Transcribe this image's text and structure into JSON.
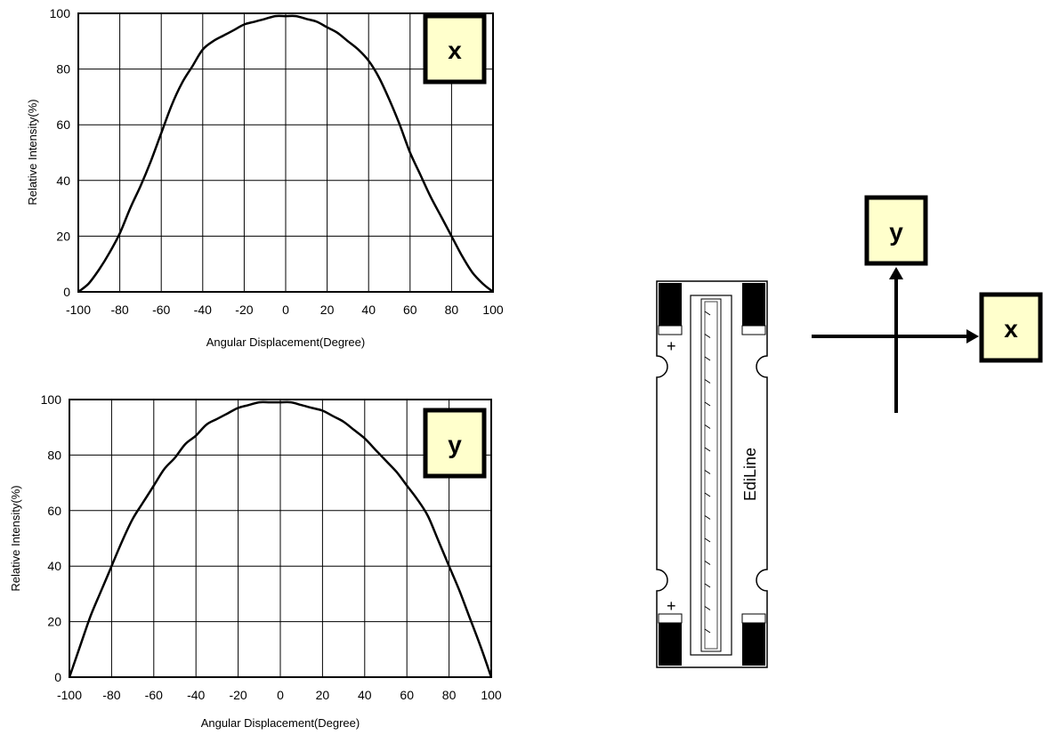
{
  "chart_data": [
    {
      "type": "line",
      "badge": "x",
      "xlabel": "Angular Displacement(Degree)",
      "ylabel": "Relative Intensity(%)",
      "xlim": [
        -100,
        100
      ],
      "ylim": [
        0,
        100
      ],
      "xticks": [
        -100,
        -80,
        -60,
        -40,
        -20,
        0,
        20,
        40,
        60,
        80,
        100
      ],
      "yticks": [
        0,
        20,
        40,
        60,
        80,
        100
      ],
      "grid": true,
      "series": [
        {
          "x": [
            -100,
            -95,
            -90,
            -85,
            -80,
            -75,
            -70,
            -65,
            -60,
            -55,
            -50,
            -45,
            -40,
            -35,
            -30,
            -25,
            -20,
            -15,
            -10,
            -5,
            0,
            5,
            10,
            15,
            20,
            25,
            30,
            35,
            40,
            45,
            50,
            55,
            60,
            65,
            70,
            75,
            80,
            85,
            90,
            95,
            100
          ],
          "y": [
            0,
            3,
            8,
            14,
            21,
            30,
            38,
            47,
            57,
            67,
            75,
            81,
            87,
            90,
            92,
            94,
            96,
            97,
            98,
            99,
            99,
            99,
            98,
            97,
            95,
            93,
            90,
            87,
            83,
            77,
            69,
            60,
            50,
            42,
            34,
            27,
            20,
            13,
            7,
            3,
            0
          ]
        }
      ]
    },
    {
      "type": "line",
      "badge": "y",
      "xlabel": "Angular Displacement(Degree)",
      "ylabel": "Relative Intensity(%)",
      "xlim": [
        -100,
        100
      ],
      "ylim": [
        0,
        100
      ],
      "xticks": [
        -100,
        -80,
        -60,
        -40,
        -20,
        0,
        20,
        40,
        60,
        80,
        100
      ],
      "yticks": [
        0,
        20,
        40,
        60,
        80,
        100
      ],
      "grid": true,
      "series": [
        {
          "x": [
            -100,
            -95,
            -90,
            -85,
            -80,
            -75,
            -70,
            -65,
            -60,
            -55,
            -50,
            -45,
            -40,
            -35,
            -30,
            -25,
            -20,
            -15,
            -10,
            -5,
            0,
            5,
            10,
            15,
            20,
            25,
            30,
            35,
            40,
            45,
            50,
            55,
            60,
            65,
            70,
            75,
            80,
            85,
            90,
            95,
            100
          ],
          "y": [
            0,
            11,
            22,
            31,
            40,
            49,
            57,
            63,
            69,
            75,
            79,
            84,
            87,
            91,
            93,
            95,
            97,
            98,
            99,
            99,
            99,
            99,
            98,
            97,
            96,
            94,
            92,
            89,
            86,
            82,
            78,
            74,
            69,
            64,
            58,
            49,
            40,
            31,
            21,
            11,
            0
          ]
        }
      ]
    }
  ],
  "diagram": {
    "product_label": "EdiLine",
    "polarity_top": "+",
    "polarity_bottom": "+",
    "axis_x_label": "x",
    "axis_y_label": "y",
    "badge_fill": "#ffffcc",
    "border_color": "#000000"
  }
}
